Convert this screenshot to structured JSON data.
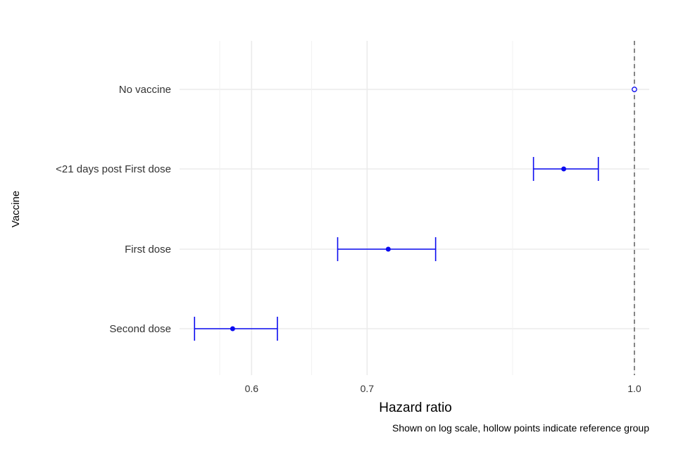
{
  "chart_data": {
    "type": "forest",
    "scale": "log",
    "xlabel": "Hazard ratio",
    "ylabel": "Vaccine",
    "caption": "Shown on log scale, hollow points indicate reference group",
    "xlim": [
      0.545,
      1.02
    ],
    "x_ticks": [
      0.6,
      0.7,
      1.0
    ],
    "x_tick_labels": [
      "0.6",
      "0.7",
      "1.0"
    ],
    "x_minor_gridlines": [
      0.575,
      0.65,
      0.85
    ],
    "reference_line": 1.0,
    "grid": true,
    "categories": [
      "No vaccine",
      "<21 days post First dose",
      "First dose",
      "Second dose"
    ],
    "series": [
      {
        "values": [
          {
            "label": "No vaccine",
            "estimate": 1.0,
            "lower": 1.0,
            "upper": 1.0,
            "reference": true
          },
          {
            "label": "<21 days post First dose",
            "estimate": 0.91,
            "lower": 0.874,
            "upper": 0.953,
            "reference": false
          },
          {
            "label": "First dose",
            "estimate": 0.72,
            "lower": 0.673,
            "upper": 0.767,
            "reference": false
          },
          {
            "label": "Second dose",
            "estimate": 0.585,
            "lower": 0.556,
            "upper": 0.621,
            "reference": false
          }
        ]
      }
    ],
    "colors": {
      "point": "#0a0af0",
      "grid": "#ebebeb",
      "reference_line": "#555555",
      "text": "#333333"
    }
  }
}
